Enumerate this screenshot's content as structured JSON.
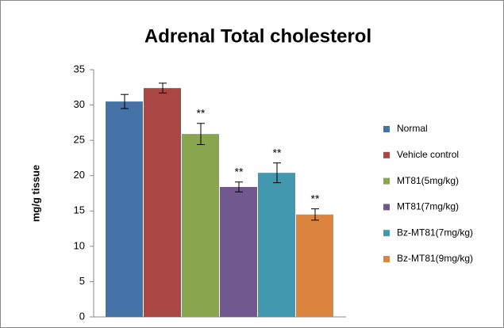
{
  "chart_data": {
    "type": "bar",
    "title": "Adrenal Total cholesterol",
    "y_label": "mg/g tissue",
    "categories": [
      null
    ],
    "series": [
      {
        "name": "Normal",
        "color": "#4572a7",
        "values": [
          30.5
        ],
        "errors": [
          1.0
        ]
      },
      {
        "name": "Vehicle control",
        "color": "#aa4643",
        "values": [
          32.4
        ],
        "errors": [
          0.7
        ]
      },
      {
        "name": "MT81(5mg/kg)",
        "color": "#89a54e",
        "values": [
          25.9
        ],
        "errors": [
          1.5
        ],
        "annotation": "**"
      },
      {
        "name": "MT81(7mg/kg)",
        "color": "#71588f",
        "values": [
          18.4
        ],
        "errors": [
          0.7
        ],
        "annotation": "**"
      },
      {
        "name": "Bz-MT81(7mg/kg)",
        "color": "#4198af",
        "values": [
          20.4
        ],
        "errors": [
          1.4
        ],
        "annotation": "**"
      },
      {
        "name": "Bz-MT81(9mg/kg)",
        "color": "#db843d",
        "values": [
          14.5
        ],
        "errors": [
          0.8
        ],
        "annotation": "**"
      }
    ],
    "ylim": [
      0,
      35
    ],
    "yticks": [
      0,
      5,
      10,
      15,
      20,
      25,
      30,
      35
    ],
    "legend": "right"
  }
}
